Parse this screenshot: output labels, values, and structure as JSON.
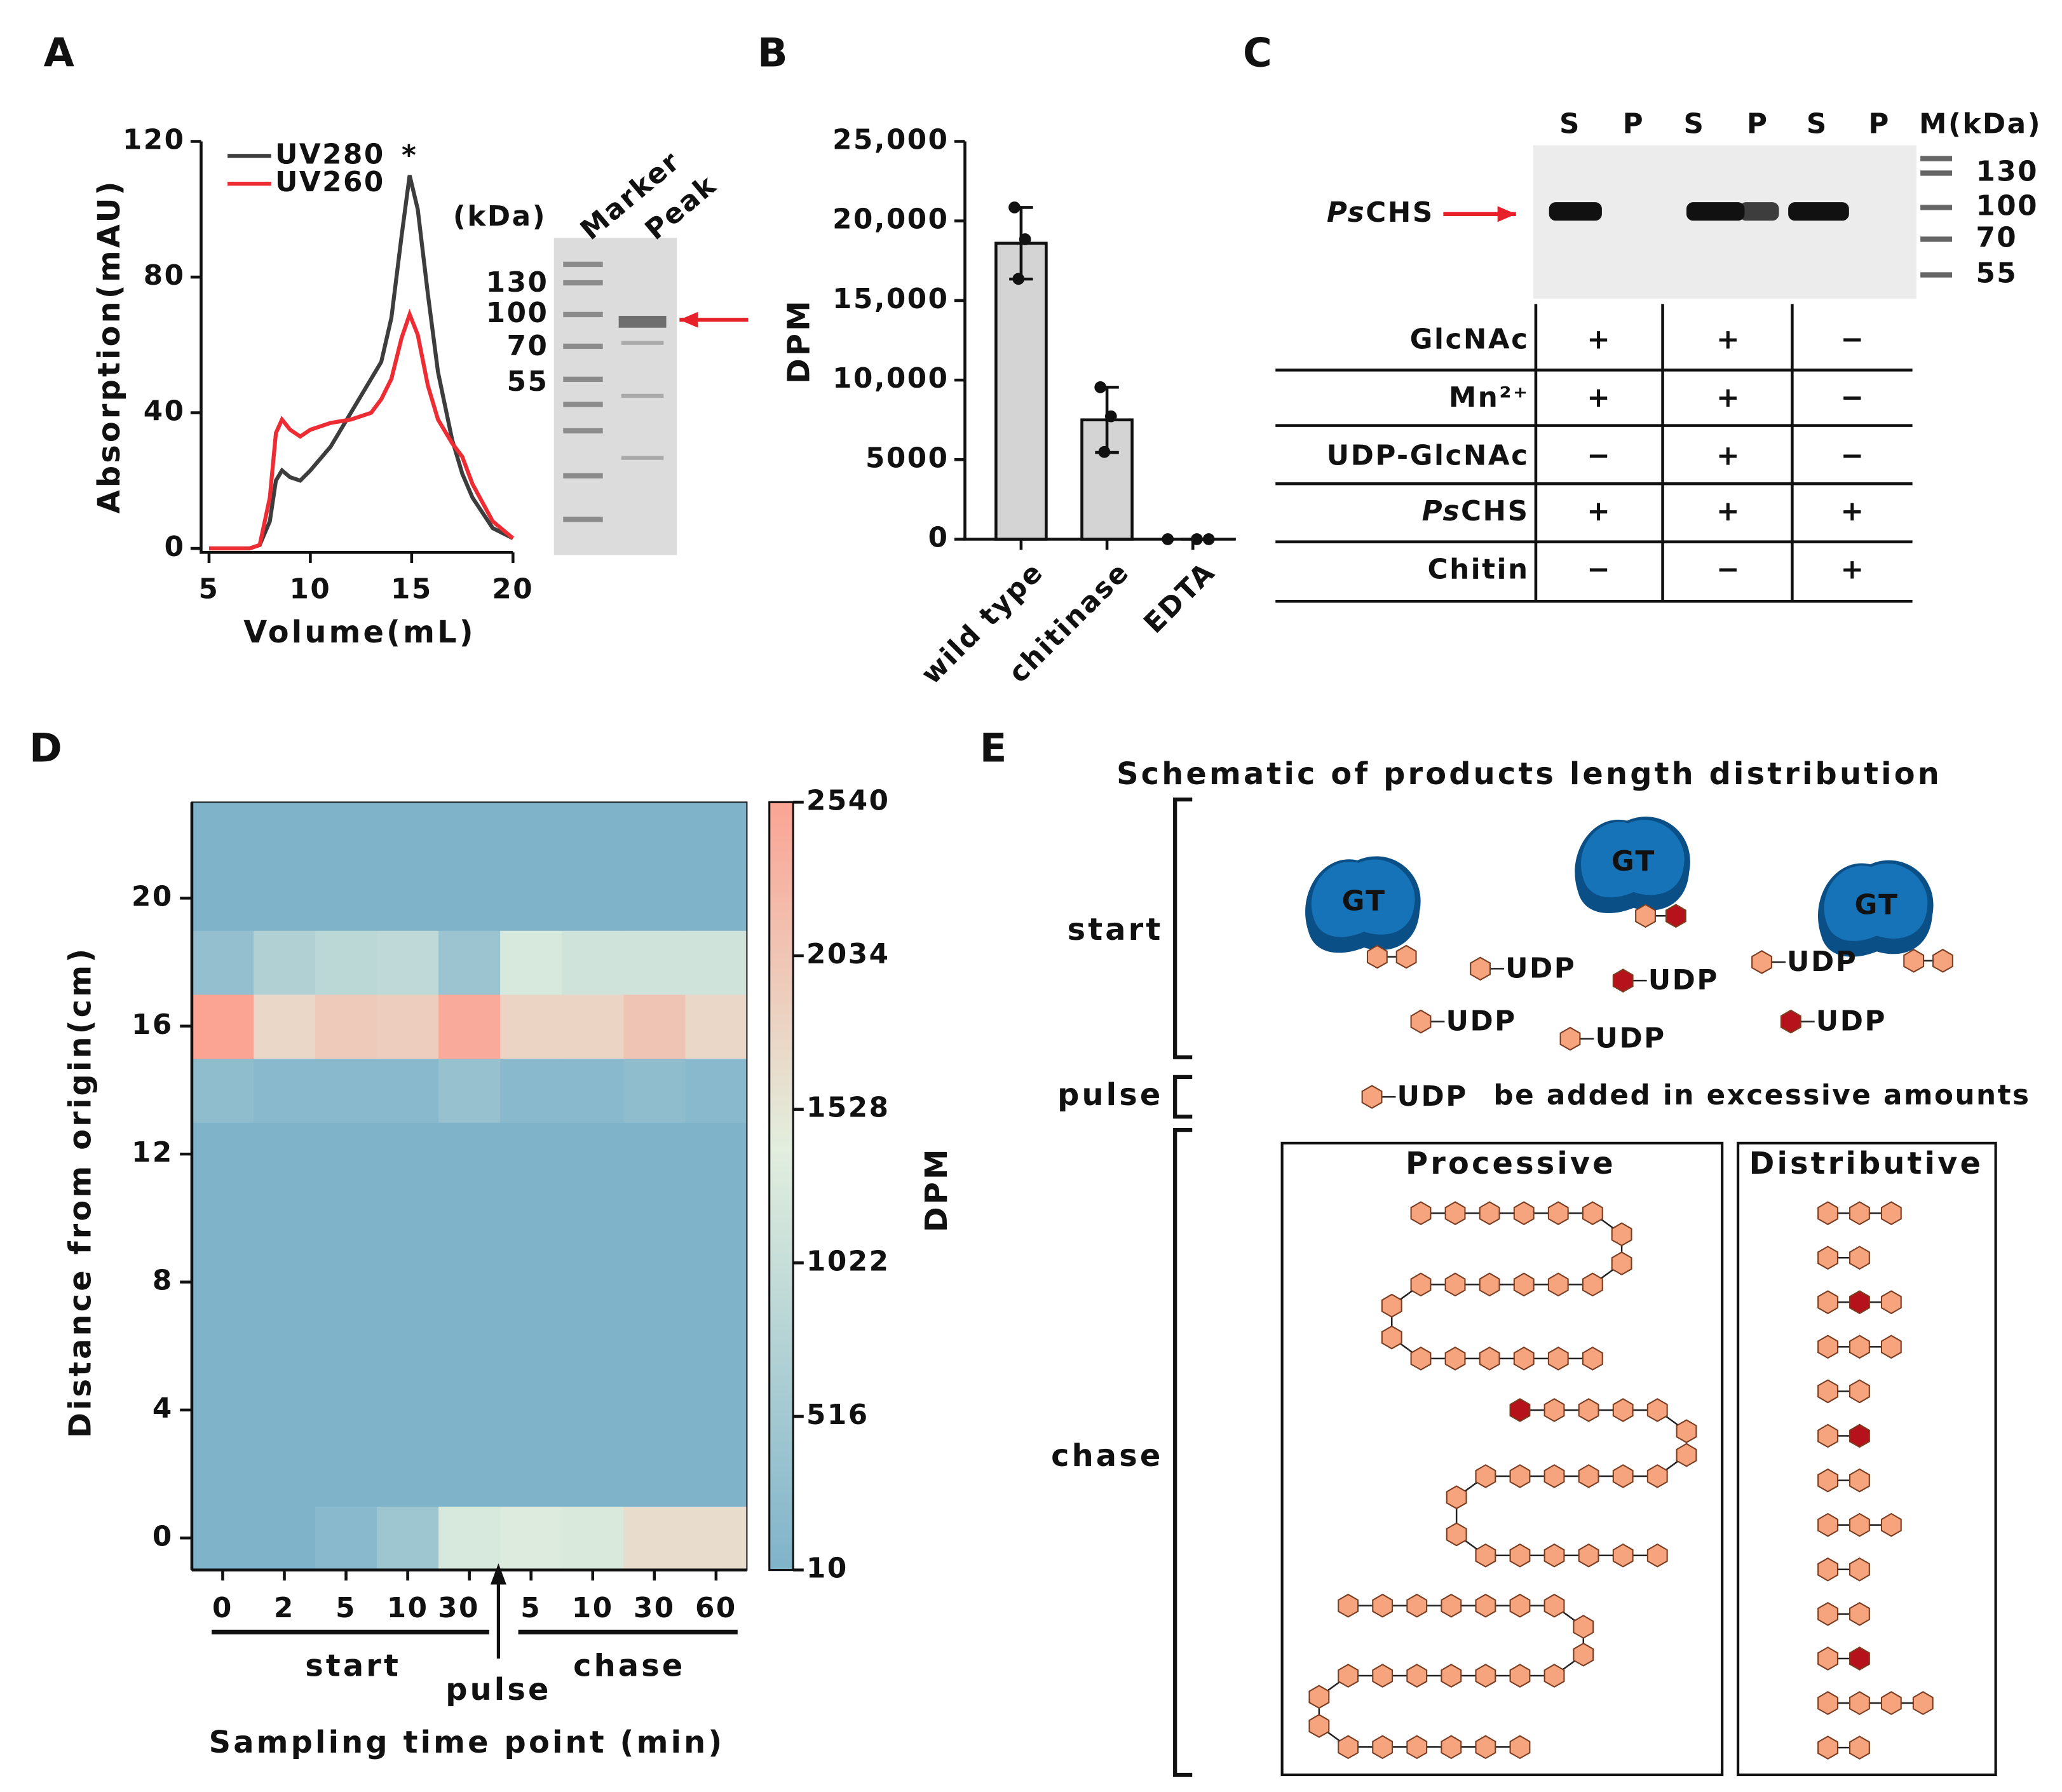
{
  "chart_data": [
    {
      "panel": "A",
      "type": "line",
      "xlabel": "Volume(mL)",
      "ylabel": "Absorption(mAU)",
      "x": [
        5,
        7,
        7.5,
        8,
        8.3,
        8.6,
        9,
        9.5,
        10,
        11,
        12,
        13,
        13.5,
        14,
        14.5,
        14.9,
        15.3,
        15.8,
        16.3,
        17,
        17.5,
        18,
        19,
        20
      ],
      "series": [
        {
          "name": "UV280",
          "color": "#3d3d3d",
          "values": [
            0,
            0,
            1,
            8,
            20,
            23,
            21,
            20,
            23,
            30,
            40,
            50,
            55,
            68,
            92,
            110,
            100,
            75,
            52,
            32,
            22,
            15,
            6,
            3
          ]
        },
        {
          "name": "UV260",
          "color": "#ee2c34",
          "values": [
            0,
            0,
            1,
            15,
            34,
            38,
            35,
            33,
            35,
            37,
            38,
            40,
            44,
            50,
            62,
            69,
            63,
            48,
            38,
            31,
            27,
            19,
            8,
            3
          ]
        }
      ],
      "xlim": [
        5,
        20
      ],
      "ylim": [
        0,
        120
      ],
      "xticks": [
        5,
        10,
        15,
        20
      ],
      "yticks": [
        0,
        40,
        80,
        120
      ],
      "legend": "upper left",
      "annotation": "*",
      "gel": {
        "unit": "(kDa)",
        "lanes": [
          "Marker",
          "Peak"
        ],
        "markers": [
          130,
          100,
          70,
          55
        ]
      }
    },
    {
      "panel": "B",
      "type": "bar",
      "ylabel": "DPM",
      "categories": [
        "wild type",
        "chitinase",
        "EDTA"
      ],
      "values": [
        18600,
        7500,
        0
      ],
      "errors": [
        2250,
        2050,
        0
      ],
      "points": [
        [
          20850,
          18850,
          16360
        ],
        [
          9550,
          7720,
          5480
        ],
        [
          0,
          0,
          0
        ]
      ],
      "color": "#d4d4d4",
      "ylim": [
        0,
        25000
      ],
      "yticks": [
        0,
        5000,
        {
          "value": 10000,
          "label": "10,000"
        },
        {
          "value": 15000,
          "label": "15,000"
        },
        {
          "value": 20000,
          "label": "20,000"
        },
        {
          "value": 25000,
          "label": "25,000"
        }
      ]
    },
    {
      "panel": "D",
      "type": "heatmap",
      "xlabel": "Sampling time point (min)",
      "ylabel": "Distance from origin(cm)",
      "categories": [
        "0",
        "2",
        "5",
        "10",
        "30",
        "5",
        "10",
        "30",
        "60"
      ],
      "y": [
        0,
        2,
        4,
        6,
        8,
        10,
        12,
        14,
        16,
        18,
        20,
        22
      ],
      "values": [
        [
          10,
          10,
          150,
          450,
          1250,
          1320,
          1280,
          1680,
          1680
        ],
        [
          10,
          10,
          10,
          10,
          10,
          10,
          10,
          10,
          10
        ],
        [
          10,
          10,
          10,
          10,
          10,
          10,
          10,
          10,
          10
        ],
        [
          10,
          10,
          10,
          10,
          10,
          10,
          10,
          10,
          10
        ],
        [
          10,
          10,
          10,
          10,
          10,
          10,
          10,
          10,
          10
        ],
        [
          10,
          10,
          10,
          10,
          10,
          10,
          10,
          10,
          10
        ],
        [
          10,
          10,
          10,
          10,
          10,
          10,
          10,
          10,
          10
        ],
        [
          250,
          150,
          150,
          150,
          350,
          150,
          150,
          250,
          150
        ],
        [
          2540,
          1750,
          1950,
          1900,
          2450,
          1800,
          1800,
          2050,
          1750
        ],
        [
          300,
          700,
          850,
          900,
          400,
          1250,
          1150,
          1150,
          1150
        ],
        [
          10,
          10,
          10,
          10,
          10,
          10,
          10,
          10,
          10
        ],
        [
          10,
          10,
          10,
          10,
          10,
          10,
          10,
          10,
          10
        ]
      ],
      "ylim": [
        -1,
        23
      ],
      "yticks": [
        0,
        4,
        8,
        12,
        16,
        20
      ],
      "colorscale": [
        [
          10,
          "#7fb3ca"
        ],
        [
          1400,
          "#e2eede"
        ],
        [
          2540,
          "#fba494"
        ]
      ],
      "colorbar": {
        "label": "DPM",
        "lim": [
          10,
          2540
        ],
        "ticks": [
          10,
          516,
          1022,
          1528,
          2034,
          2540
        ]
      },
      "annotations": [
        "start",
        "chase",
        "pulse"
      ]
    }
  ],
  "panel_c": {
    "panel": "C",
    "lanes": [
      "S",
      "P",
      "S",
      "P",
      "S",
      "P"
    ],
    "marker_header": "M(kDa)",
    "markers": [
      "130",
      "100",
      "70",
      "55"
    ],
    "protein": "PsCHS",
    "table": [
      [
        "GlcNAc",
        "+",
        "+",
        "−"
      ],
      [
        "Mn²⁺",
        "+",
        "+",
        "−"
      ],
      [
        "UDP-GlcNAc",
        "−",
        "+",
        "−"
      ],
      [
        "PsCHS",
        "+",
        "+",
        "+"
      ],
      [
        "Chitin",
        "−",
        "−",
        "+"
      ]
    ]
  },
  "panel_e": {
    "panel": "E",
    "title": "Schematic of products length distribution",
    "stages": [
      "start",
      "pulse",
      "chase"
    ],
    "enzymes": [
      "GT",
      "GT",
      "GT"
    ],
    "udp": [
      "UDP",
      "UDP",
      "UDP",
      "UDP",
      "UDP",
      "UDP",
      "UDP"
    ],
    "note": "be added in excessive amounts",
    "modes": [
      "Processive",
      "Distributive"
    ]
  }
}
